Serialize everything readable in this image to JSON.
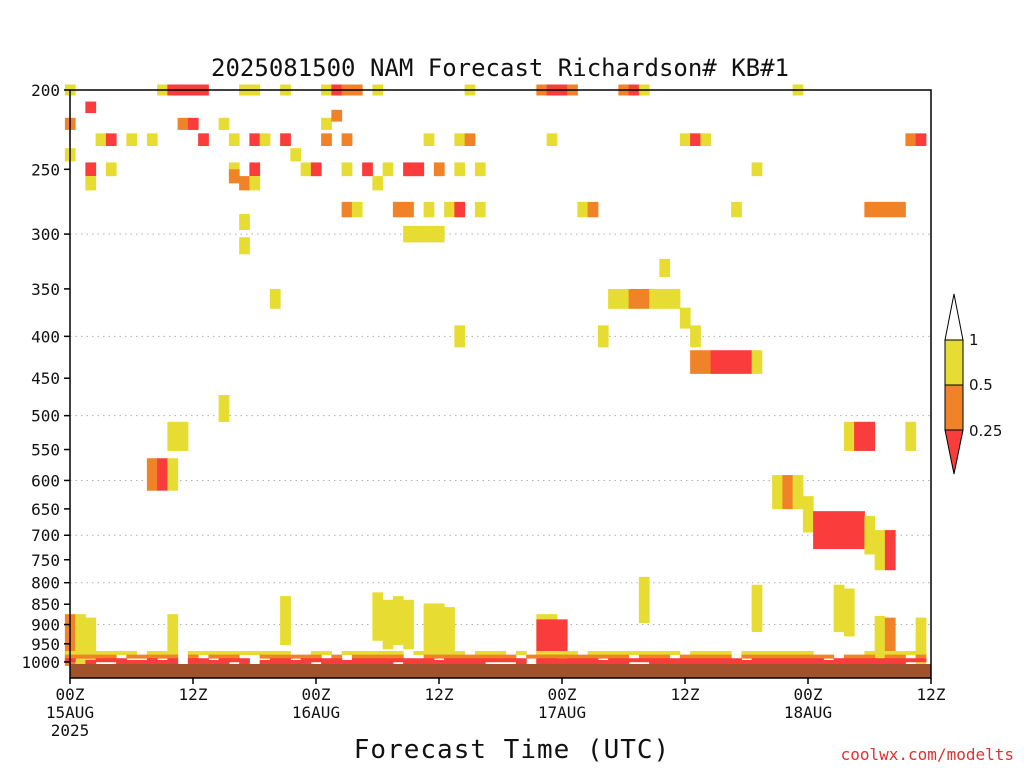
{
  "chart_data": {
    "type": "heatmap",
    "title": "2025081500 NAM Forecast Richardson# KB#1",
    "xlabel": "Forecast Time (UTC)",
    "ylabel": "",
    "x_unit": "forecast hour",
    "xlim": [
      0,
      84
    ],
    "ylim": [
      1000,
      200
    ],
    "y_scale": "log-pressure (hPa)",
    "grid": true,
    "credit": "coolwx.com/modelts",
    "x_ticks": [
      {
        "hour": 0,
        "lines": [
          "00Z",
          "15AUG",
          "2025"
        ]
      },
      {
        "hour": 12,
        "lines": [
          "12Z"
        ]
      },
      {
        "hour": 24,
        "lines": [
          "00Z",
          "16AUG"
        ]
      },
      {
        "hour": 36,
        "lines": [
          "12Z"
        ]
      },
      {
        "hour": 48,
        "lines": [
          "00Z",
          "17AUG"
        ]
      },
      {
        "hour": 60,
        "lines": [
          "12Z"
        ]
      },
      {
        "hour": 72,
        "lines": [
          "00Z",
          "18AUG"
        ]
      },
      {
        "hour": 84,
        "lines": [
          "12Z"
        ]
      }
    ],
    "y_ticks": [
      200,
      250,
      300,
      350,
      400,
      450,
      500,
      550,
      600,
      650,
      700,
      750,
      800,
      850,
      900,
      950,
      1000
    ],
    "y_gridlines": [
      300,
      400,
      500,
      600,
      700,
      800,
      900
    ],
    "legend": {
      "placement": "right",
      "labels": [
        "1",
        "0.5",
        "0.25"
      ],
      "bins": [
        {
          "range": "above 1",
          "color": "#ffffff"
        },
        {
          "range": "0.5 - 1",
          "color": "#e6dc32"
        },
        {
          "range": "0.25 - 0.5",
          "color": "#f08228"
        },
        {
          "range": "below 0.25",
          "color": "#fa3c3c"
        }
      ]
    },
    "colors": {
      "high": "#e6dc32",
      "mid": "#f08228",
      "low": "#fa3c3c",
      "ground": "#a0522d"
    },
    "cells": [
      {
        "x": 0,
        "y": 200,
        "b": 1
      },
      {
        "x": 0,
        "y": 220,
        "b": 2
      },
      {
        "x": 0,
        "y": 240,
        "b": 1
      },
      {
        "x": 2,
        "y": 210,
        "b": 3
      },
      {
        "x": 2,
        "y": 250,
        "b": 3
      },
      {
        "x": 2,
        "y": 260,
        "b": 1
      },
      {
        "x": 3,
        "y": 230,
        "b": 1
      },
      {
        "x": 4,
        "y": 230,
        "b": 3
      },
      {
        "x": 4,
        "y": 250,
        "b": 1
      },
      {
        "x": 6,
        "y": 230,
        "b": 1
      },
      {
        "x": 8,
        "y": 230,
        "b": 1
      },
      {
        "x": 9,
        "y": 200,
        "b": 1
      },
      {
        "x": 10,
        "y": 200,
        "b": 3
      },
      {
        "x": 11,
        "y": 200,
        "b": 3
      },
      {
        "x": 12,
        "y": 200,
        "b": 3
      },
      {
        "x": 13,
        "y": 200,
        "b": 3
      },
      {
        "x": 11,
        "y": 220,
        "b": 2
      },
      {
        "x": 12,
        "y": 220,
        "b": 3
      },
      {
        "x": 13,
        "y": 230,
        "b": 3
      },
      {
        "x": 15,
        "y": 220,
        "b": 1
      },
      {
        "x": 16,
        "y": 230,
        "b": 1
      },
      {
        "x": 16,
        "y": 250,
        "b": 1
      },
      {
        "x": 17,
        "y": 200,
        "b": 1
      },
      {
        "x": 16,
        "y": 255,
        "b": 2
      },
      {
        "x": 17,
        "y": 260,
        "b": 2
      },
      {
        "x": 17,
        "y": 290,
        "b": 1
      },
      {
        "x": 17,
        "y": 310,
        "b": 1
      },
      {
        "x": 18,
        "y": 200,
        "b": 1
      },
      {
        "x": 18,
        "y": 230,
        "b": 3
      },
      {
        "x": 18,
        "y": 250,
        "b": 3
      },
      {
        "x": 18,
        "y": 260,
        "b": 1
      },
      {
        "x": 19,
        "y": 230,
        "b": 1
      },
      {
        "x": 21,
        "y": 200,
        "b": 1
      },
      {
        "x": 21,
        "y": 230,
        "b": 3
      },
      {
        "x": 22,
        "y": 240,
        "b": 1
      },
      {
        "x": 23,
        "y": 250,
        "b": 1
      },
      {
        "x": 24,
        "y": 250,
        "b": 3
      },
      {
        "x": 25,
        "y": 200,
        "b": 1
      },
      {
        "x": 25,
        "y": 220,
        "b": 1
      },
      {
        "x": 25,
        "y": 230,
        "b": 2
      },
      {
        "x": 26,
        "y": 200,
        "b": 3
      },
      {
        "x": 26,
        "y": 215,
        "b": 2
      },
      {
        "x": 27,
        "y": 200,
        "b": 2
      },
      {
        "x": 28,
        "y": 200,
        "b": 2
      },
      {
        "x": 27,
        "y": 230,
        "b": 2
      },
      {
        "x": 27,
        "y": 250,
        "b": 1
      },
      {
        "x": 27,
        "y": 280,
        "b": 2
      },
      {
        "x": 28,
        "y": 280,
        "b": 1
      },
      {
        "x": 30,
        "y": 200,
        "b": 1
      },
      {
        "x": 29,
        "y": 250,
        "b": 3
      },
      {
        "x": 30,
        "y": 260,
        "b": 1
      },
      {
        "x": 31,
        "y": 250,
        "b": 1
      },
      {
        "x": 32,
        "y": 280,
        "b": 2
      },
      {
        "x": 33,
        "y": 280,
        "b": 2
      },
      {
        "x": 33,
        "y": 250,
        "b": 3
      },
      {
        "x": 34,
        "y": 250,
        "b": 3
      },
      {
        "x": 33,
        "y": 300,
        "b": 1
      },
      {
        "x": 34,
        "y": 300,
        "b": 1
      },
      {
        "x": 35,
        "y": 300,
        "b": 1
      },
      {
        "x": 35,
        "y": 280,
        "b": 1
      },
      {
        "x": 35,
        "y": 230,
        "b": 1
      },
      {
        "x": 36,
        "y": 250,
        "b": 2
      },
      {
        "x": 36,
        "y": 300,
        "b": 1
      },
      {
        "x": 37,
        "y": 280,
        "b": 1
      },
      {
        "x": 38,
        "y": 280,
        "b": 3
      },
      {
        "x": 38,
        "y": 250,
        "b": 1
      },
      {
        "x": 38,
        "y": 230,
        "b": 1
      },
      {
        "x": 39,
        "y": 200,
        "b": 1
      },
      {
        "x": 39,
        "y": 230,
        "b": 2
      },
      {
        "x": 40,
        "y": 250,
        "b": 1
      },
      {
        "x": 40,
        "y": 280,
        "b": 1
      },
      {
        "x": 38,
        "y": 400,
        "b": 1
      },
      {
        "x": 46,
        "y": 200,
        "b": 2
      },
      {
        "x": 47,
        "y": 200,
        "b": 3
      },
      {
        "x": 48,
        "y": 200,
        "b": 3
      },
      {
        "x": 49,
        "y": 200,
        "b": 2
      },
      {
        "x": 47,
        "y": 230,
        "b": 1
      },
      {
        "x": 50,
        "y": 280,
        "b": 1
      },
      {
        "x": 51,
        "y": 280,
        "b": 2
      },
      {
        "x": 54,
        "y": 200,
        "b": 2
      },
      {
        "x": 55,
        "y": 200,
        "b": 3
      },
      {
        "x": 56,
        "y": 200,
        "b": 1
      },
      {
        "x": 53,
        "y": 360,
        "b": 1
      },
      {
        "x": 54,
        "y": 360,
        "b": 1
      },
      {
        "x": 55,
        "y": 360,
        "b": 2
      },
      {
        "x": 56,
        "y": 360,
        "b": 2
      },
      {
        "x": 57,
        "y": 360,
        "b": 1
      },
      {
        "x": 58,
        "y": 360,
        "b": 1
      },
      {
        "x": 59,
        "y": 360,
        "b": 1
      },
      {
        "x": 58,
        "y": 330,
        "b": 1
      },
      {
        "x": 60,
        "y": 380,
        "b": 1
      },
      {
        "x": 61,
        "y": 400,
        "b": 1
      },
      {
        "x": 61,
        "y": 430,
        "b": 2
      },
      {
        "x": 62,
        "y": 430,
        "b": 2
      },
      {
        "x": 63,
        "y": 430,
        "b": 3
      },
      {
        "x": 64,
        "y": 430,
        "b": 3
      },
      {
        "x": 65,
        "y": 430,
        "b": 3
      },
      {
        "x": 66,
        "y": 430,
        "b": 3
      },
      {
        "x": 67,
        "y": 430,
        "b": 1
      },
      {
        "x": 60,
        "y": 230,
        "b": 1
      },
      {
        "x": 61,
        "y": 230,
        "b": 3
      },
      {
        "x": 62,
        "y": 230,
        "b": 1
      },
      {
        "x": 65,
        "y": 280,
        "b": 1
      },
      {
        "x": 67,
        "y": 250,
        "b": 1
      },
      {
        "x": 71,
        "y": 200,
        "b": 1
      },
      {
        "x": 52,
        "y": 400,
        "b": 1
      },
      {
        "x": 78,
        "y": 280,
        "b": 2
      },
      {
        "x": 79,
        "y": 280,
        "b": 2
      },
      {
        "x": 80,
        "y": 280,
        "b": 2
      },
      {
        "x": 81,
        "y": 280,
        "b": 2
      },
      {
        "x": 82,
        "y": 230,
        "b": 2
      },
      {
        "x": 83,
        "y": 230,
        "b": 3
      },
      {
        "x": 20,
        "y": 360,
        "b": 1
      },
      {
        "x": 15,
        "y": 490,
        "b": 1
      },
      {
        "x": 10,
        "y": 530,
        "b": 1
      },
      {
        "x": 11,
        "y": 530,
        "b": 1
      },
      {
        "x": 8,
        "y": 590,
        "b": 2
      },
      {
        "x": 9,
        "y": 590,
        "b": 3
      },
      {
        "x": 10,
        "y": 590,
        "b": 1
      },
      {
        "x": 76,
        "y": 530,
        "b": 1
      },
      {
        "x": 77,
        "y": 530,
        "b": 3
      },
      {
        "x": 78,
        "y": 530,
        "b": 3
      },
      {
        "x": 82,
        "y": 530,
        "b": 1
      },
      {
        "x": 69,
        "y": 620,
        "b": 1
      },
      {
        "x": 70,
        "y": 620,
        "b": 2
      },
      {
        "x": 71,
        "y": 620,
        "b": 1
      },
      {
        "x": 72,
        "y": 660,
        "b": 1
      },
      {
        "x": 73,
        "y": 690,
        "b": 3
      },
      {
        "x": 74,
        "y": 690,
        "b": 3
      },
      {
        "x": 75,
        "y": 690,
        "b": 3
      },
      {
        "x": 76,
        "y": 690,
        "b": 3
      },
      {
        "x": 77,
        "y": 690,
        "b": 3
      },
      {
        "x": 78,
        "y": 700,
        "b": 1
      },
      {
        "x": 79,
        "y": 730,
        "b": 1
      },
      {
        "x": 80,
        "y": 730,
        "b": 3
      },
      {
        "x": 67,
        "y": 860,
        "b": 1
      },
      {
        "x": 56,
        "y": 840,
        "b": 1
      },
      {
        "x": 75,
        "y": 860,
        "b": 1
      },
      {
        "x": 76,
        "y": 870,
        "b": 1
      },
      {
        "x": 30,
        "y": 880,
        "b": 1
      },
      {
        "x": 31,
        "y": 900,
        "b": 1
      },
      {
        "x": 32,
        "y": 890,
        "b": 1
      },
      {
        "x": 33,
        "y": 900,
        "b": 1
      },
      {
        "x": 35,
        "y": 910,
        "b": 1
      },
      {
        "x": 36,
        "y": 910,
        "b": 1
      },
      {
        "x": 37,
        "y": 920,
        "b": 1
      },
      {
        "x": 21,
        "y": 890,
        "b": 1
      },
      {
        "x": 10,
        "y": 940,
        "b": 1
      },
      {
        "x": 0,
        "y": 940,
        "b": 2
      },
      {
        "x": 1,
        "y": 940,
        "b": 1
      },
      {
        "x": 2,
        "y": 950,
        "b": 1
      },
      {
        "x": 46,
        "y": 940,
        "b": 1
      },
      {
        "x": 47,
        "y": 940,
        "b": 1
      },
      {
        "x": 46,
        "y": 955,
        "b": 3
      },
      {
        "x": 47,
        "y": 955,
        "b": 3
      },
      {
        "x": 48,
        "y": 955,
        "b": 3
      },
      {
        "x": 79,
        "y": 945,
        "b": 1
      },
      {
        "x": 80,
        "y": 950,
        "b": 2
      },
      {
        "x": 83,
        "y": 950,
        "b": 1
      }
    ]
  }
}
